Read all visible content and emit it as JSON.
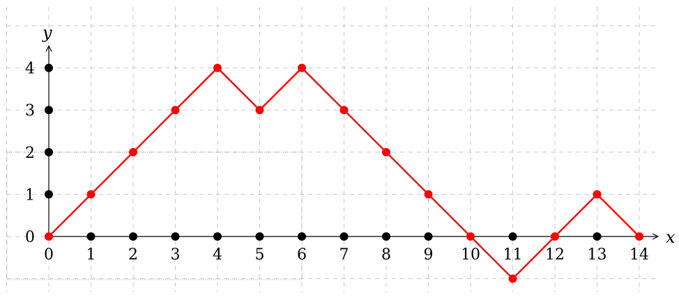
{
  "chart_data": {
    "type": "line",
    "xlabel": "x",
    "ylabel": "y",
    "xlim": [
      0,
      14
    ],
    "ylim": [
      -1,
      4
    ],
    "x_ticks": [
      0,
      1,
      2,
      3,
      4,
      5,
      6,
      7,
      8,
      9,
      10,
      11,
      12,
      13,
      14
    ],
    "y_ticks": [
      0,
      1,
      2,
      3,
      4
    ],
    "grid": true,
    "colors": {
      "path": "#ff0000",
      "lattice": "#000000",
      "grid": "#c8c8c8"
    },
    "series": [
      {
        "x": [
          0,
          1,
          2,
          3,
          4,
          5,
          6,
          7,
          8,
          9,
          10,
          11,
          12,
          13,
          14
        ],
        "y": [
          0,
          1,
          2,
          3,
          4,
          3,
          4,
          3,
          2,
          1,
          0,
          -1,
          0,
          1,
          0
        ]
      }
    ],
    "x_axis_points": [
      1,
      2,
      3,
      4,
      5,
      6,
      7,
      8,
      9,
      11,
      13
    ],
    "y_axis_points": [
      1,
      2,
      3,
      4
    ]
  }
}
